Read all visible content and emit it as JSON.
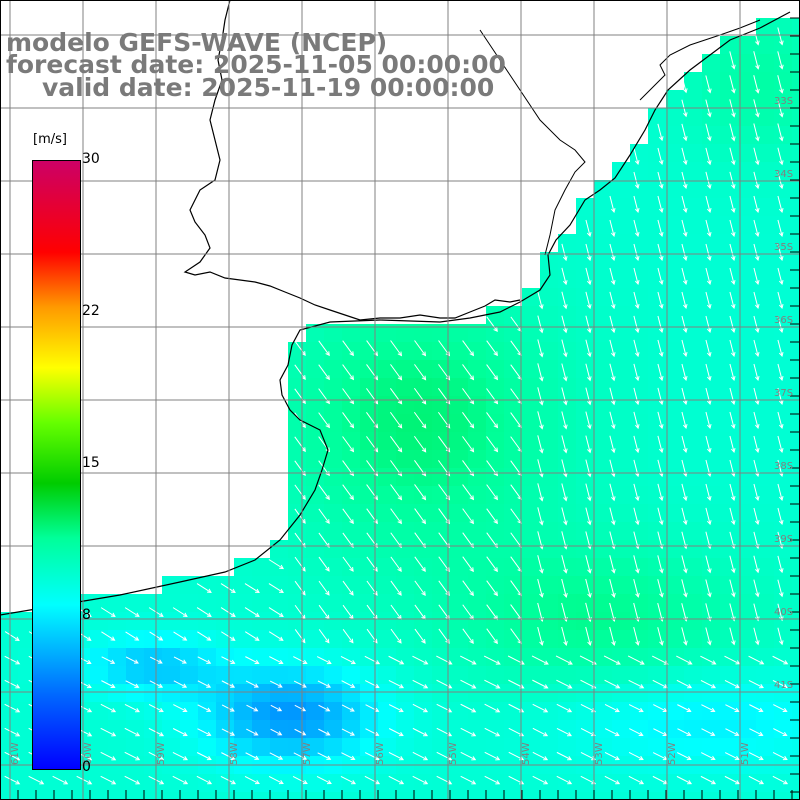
{
  "title": {
    "model": "modelo GEFS-WAVE (NCEP)",
    "forecast_date": "forecast date: 2025-11-05 00:00:00",
    "valid_date": "valid date: 2025-11-19 00:00:00"
  },
  "colorbar": {
    "units": "[m/s]",
    "ticks": [
      {
        "label": "30",
        "value": 30
      },
      {
        "label": "22",
        "value": 22
      },
      {
        "label": "15",
        "value": 15
      },
      {
        "label": "8",
        "value": 8
      },
      {
        "label": "0",
        "value": 0
      }
    ],
    "min": 0,
    "max": 30
  },
  "map": {
    "parameter": "10 m wind speed and direction",
    "lat_labels": [
      "33S",
      "34S",
      "35S",
      "36S",
      "37S",
      "38S",
      "39S",
      "40S",
      "41S"
    ],
    "lon_labels": [
      "61W",
      "60W",
      "59W",
      "58W",
      "57W",
      "56W",
      "55W",
      "54W",
      "53W",
      "52W",
      "51W"
    ],
    "colors": {
      "land": "#ffffff",
      "coastline": "#000000",
      "grid": "#808080",
      "arrow": "#ffffff",
      "label": "#808080"
    }
  }
}
